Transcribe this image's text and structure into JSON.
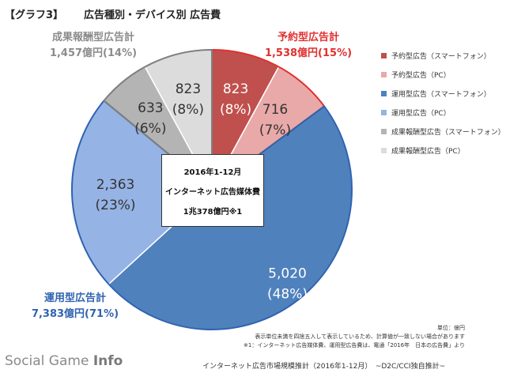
{
  "header": {
    "figure_label": "【グラフ3】",
    "title": "広告種別・デバイス別 広告費"
  },
  "chart_data": {
    "type": "pie",
    "title": "広告種別・デバイス別 広告費",
    "slices": [
      {
        "legend": "予約型広告（スマートフォン）",
        "value": 823,
        "percent_label": "(8%)",
        "color": "#c0504d"
      },
      {
        "legend": "予約型広告（PC）",
        "value": 716,
        "percent_label": "(7%)",
        "color": "#e9a9a8"
      },
      {
        "legend": "運用型広告（スマートフォン）",
        "value": 5020,
        "percent_label": "(48%)",
        "color": "#4f81bd"
      },
      {
        "legend": "運用型広告（PC）",
        "value": 2363,
        "percent_label": "(23%)",
        "color": "#95b3e4"
      },
      {
        "legend": "成果報酬型広告（スマートフォン）",
        "value": 633,
        "percent_label": "(6%)",
        "color": "#b4b4b4"
      },
      {
        "legend": "成果報酬型広告（PC）",
        "value": 823,
        "percent_label": "(8%)",
        "color": "#dcdcdc"
      }
    ],
    "groups": [
      {
        "name": "予約型広告計",
        "total": "1,538億円(15%)",
        "color": "#e0302e"
      },
      {
        "name": "運用型広告計",
        "total": "7,383億円(71%)",
        "color": "#2f63b0"
      },
      {
        "name": "成果報酬型広告計",
        "total": "1,457億円(14%)",
        "color": "#8c8c8c"
      }
    ],
    "center_box": {
      "line1": "2016年1-12月",
      "line2": "インターネット広告媒体費",
      "line3": "1兆378億円※1"
    },
    "legend_position": "right"
  },
  "notes": {
    "unit": "単位：億円",
    "rounding": "表示単位未満を四捨五入して表示しているため、計算値が一致しない場合があります",
    "footnote": "※1：インターネット広告媒体費、運用型広告費は、電通「2016年　日本の広告費」より"
  },
  "source": "インターネット広告市場規模推計（2016年1-12月）　~D2C/CCI独自推計~",
  "watermark": {
    "part1": "Social Game ",
    "part2": "Info"
  }
}
